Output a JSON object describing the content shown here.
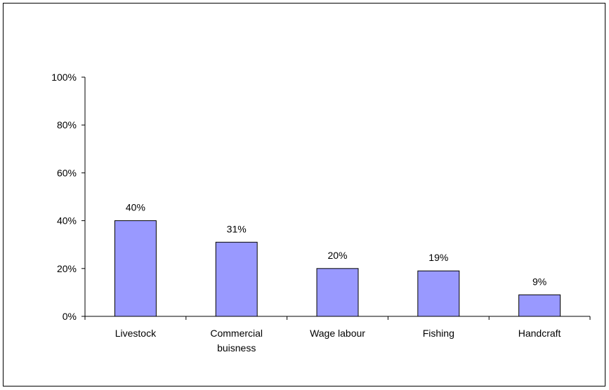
{
  "chart_data": {
    "type": "bar",
    "categories": [
      "Livestock",
      "Commercial buisness",
      "Wage labour",
      "Fishing",
      "Handcraft"
    ],
    "category_lines": [
      [
        "Livestock"
      ],
      [
        "Commercial",
        "buisness"
      ],
      [
        "Wage labour"
      ],
      [
        "Fishing"
      ],
      [
        "Handcraft"
      ]
    ],
    "values": [
      40,
      31,
      20,
      19,
      9
    ],
    "data_labels": [
      "40%",
      "31%",
      "20%",
      "19%",
      "9%"
    ],
    "y_ticks": [
      0,
      20,
      40,
      60,
      80,
      100
    ],
    "y_tick_labels": [
      "0%",
      "20%",
      "40%",
      "60%",
      "80%",
      "100%"
    ],
    "ylim": [
      0,
      100
    ],
    "title": "",
    "xlabel": "",
    "ylabel": "",
    "grid": false,
    "legend": "none",
    "colors": {
      "bar_fill": "#9999ff",
      "bar_stroke": "#000000",
      "axis": "#000000"
    }
  }
}
